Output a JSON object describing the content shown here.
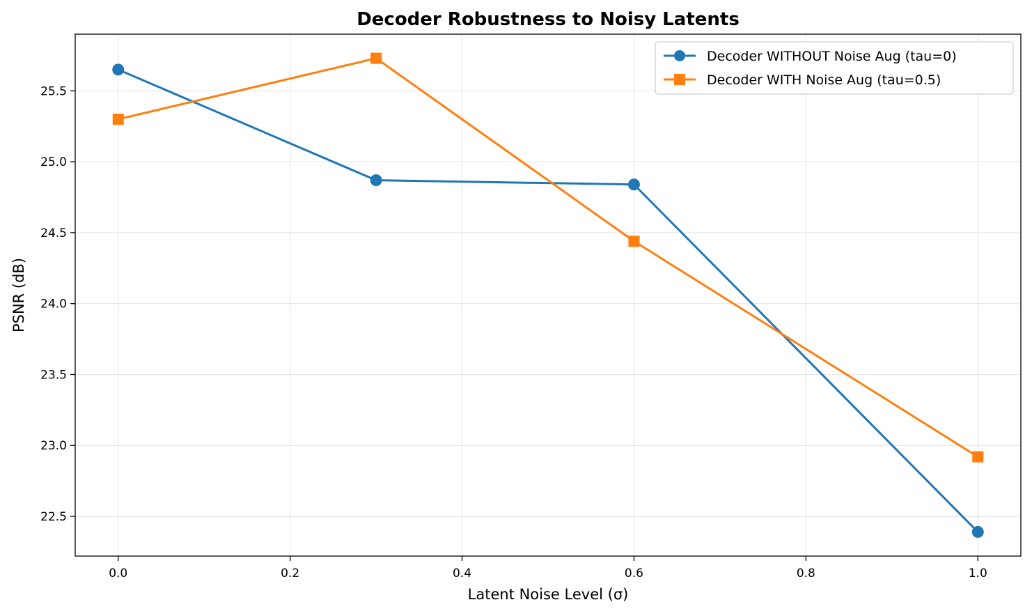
{
  "chart_data": {
    "type": "line",
    "title": "Decoder Robustness to Noisy Latents",
    "xlabel": "Latent Noise Level (σ)",
    "ylabel": "PSNR (dB)",
    "xlim": [
      -0.05,
      1.05
    ],
    "ylim": [
      22.22,
      25.9
    ],
    "x_ticks": [
      0.0,
      0.2,
      0.4,
      0.6,
      0.8,
      1.0
    ],
    "x_tick_labels": [
      "0.0",
      "0.2",
      "0.4",
      "0.6",
      "0.8",
      "1.0"
    ],
    "y_ticks": [
      22.5,
      23.0,
      23.5,
      24.0,
      24.5,
      25.0,
      25.5
    ],
    "y_tick_labels": [
      "22.5",
      "23.0",
      "23.5",
      "24.0",
      "24.5",
      "25.0",
      "25.5"
    ],
    "grid": true,
    "legend_position": "top-right",
    "x": [
      0.0,
      0.3,
      0.6,
      1.0
    ],
    "series": [
      {
        "name": "Decoder WITHOUT Noise Aug (tau=0)",
        "color": "#1f77b4",
        "marker": "circle",
        "values": [
          25.65,
          24.87,
          24.84,
          22.39
        ]
      },
      {
        "name": "Decoder WITH Noise Aug (tau=0.5)",
        "color": "#ff7f0e",
        "marker": "square",
        "values": [
          25.3,
          25.73,
          24.44,
          22.92
        ]
      }
    ]
  }
}
